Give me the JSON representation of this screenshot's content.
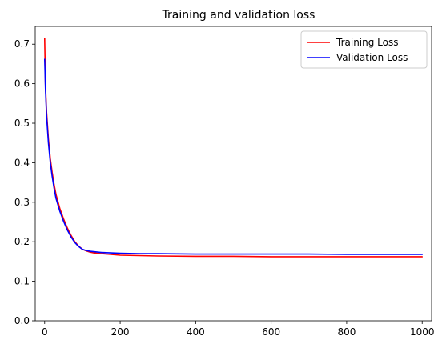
{
  "chart_data": {
    "type": "line",
    "title": "Training and validation loss",
    "xlabel": "",
    "ylabel": "",
    "xlim": [
      -25,
      1025
    ],
    "ylim": [
      0,
      0.745
    ],
    "x_ticks": [
      0,
      200,
      400,
      600,
      800,
      1000
    ],
    "y_ticks": [
      0.0,
      0.1,
      0.2,
      0.3,
      0.4,
      0.5,
      0.6,
      0.7
    ],
    "grid": false,
    "legend_position": "top-right",
    "series": [
      {
        "name": "Training Loss",
        "color": "#ff0000",
        "x": [
          0,
          1,
          2,
          5,
          10,
          15,
          20,
          25,
          30,
          40,
          50,
          60,
          70,
          80,
          90,
          100,
          110,
          120,
          130,
          150,
          175,
          200,
          250,
          300,
          400,
          500,
          600,
          700,
          800,
          900,
          1000
        ],
        "y": [
          0.715,
          0.66,
          0.6,
          0.53,
          0.46,
          0.41,
          0.375,
          0.345,
          0.32,
          0.285,
          0.258,
          0.235,
          0.216,
          0.2,
          0.189,
          0.181,
          0.177,
          0.174,
          0.172,
          0.17,
          0.168,
          0.166,
          0.165,
          0.164,
          0.163,
          0.163,
          0.162,
          0.162,
          0.162,
          0.162,
          0.162
        ]
      },
      {
        "name": "Validation Loss",
        "color": "#0000ff",
        "x": [
          0,
          1,
          2,
          5,
          10,
          15,
          20,
          25,
          30,
          40,
          50,
          60,
          70,
          80,
          90,
          100,
          110,
          120,
          130,
          150,
          175,
          200,
          250,
          300,
          400,
          500,
          600,
          700,
          800,
          900,
          1000
        ],
        "y": [
          0.662,
          0.63,
          0.59,
          0.52,
          0.45,
          0.4,
          0.365,
          0.335,
          0.31,
          0.278,
          0.252,
          0.23,
          0.212,
          0.198,
          0.188,
          0.181,
          0.178,
          0.176,
          0.175,
          0.173,
          0.172,
          0.171,
          0.17,
          0.17,
          0.169,
          0.169,
          0.169,
          0.169,
          0.168,
          0.168,
          0.168
        ]
      }
    ]
  }
}
